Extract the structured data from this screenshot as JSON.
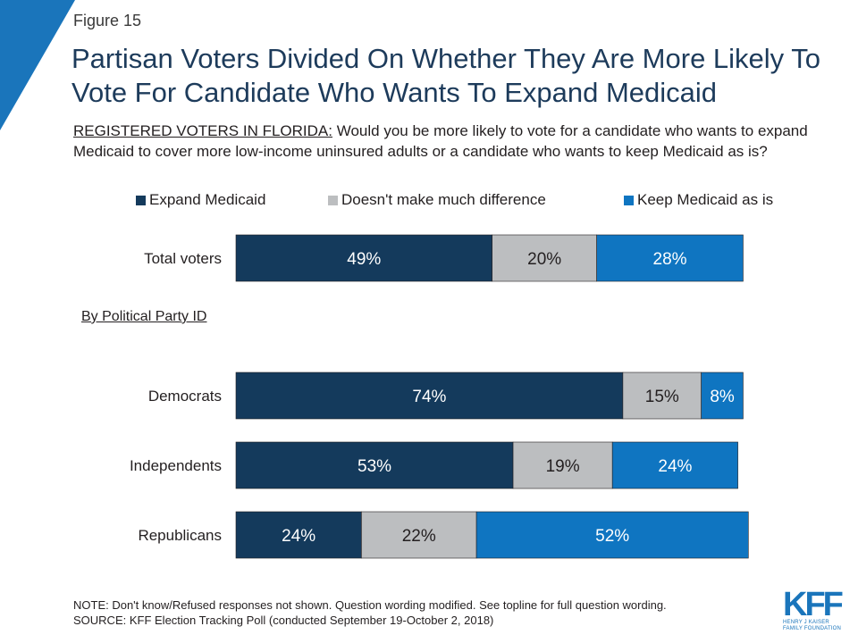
{
  "figure_label": "Figure 15",
  "title": "Partisan Voters Divided On Whether They Are More Likely To Vote For Candidate Who Wants To Expand Medicaid",
  "subtitle_lead": "REGISTERED VOTERS IN FLORIDA:",
  "subtitle_rest": " Would you be more likely to vote for a candidate who wants to expand Medicaid to cover more low-income uninsured adults or a candidate who wants to keep Medicaid as is?",
  "section_label": "By Political Party ID",
  "note": "NOTE: Don't know/Refused responses not shown. Question wording modified. See topline for full question wording.",
  "source": "SOURCE: KFF Election Tracking Poll (conducted September 19-October 2, 2018)",
  "logo": {
    "mark": "KFF",
    "line1": "HENRY J KAISER",
    "line2": "FAMILY FOUNDATION"
  },
  "chart_data": {
    "type": "bar",
    "orientation": "horizontal",
    "stacked": true,
    "categories": [
      "Total voters",
      "Democrats",
      "Independents",
      "Republicans"
    ],
    "series": [
      {
        "name": "Expand Medicaid",
        "values": [
          49,
          74,
          53,
          24
        ],
        "color": "#143a5c"
      },
      {
        "name": "Doesn't make much difference",
        "values": [
          20,
          15,
          19,
          22
        ],
        "color": "#bcbec0"
      },
      {
        "name": "Keep Medicaid as is",
        "values": [
          28,
          8,
          24,
          52
        ],
        "color": "#0f75c1"
      }
    ],
    "value_suffix": "%",
    "value_label_colors": [
      "#ffffff",
      "#231f20",
      "#ffffff"
    ],
    "legend_position": "top",
    "grid": false
  }
}
